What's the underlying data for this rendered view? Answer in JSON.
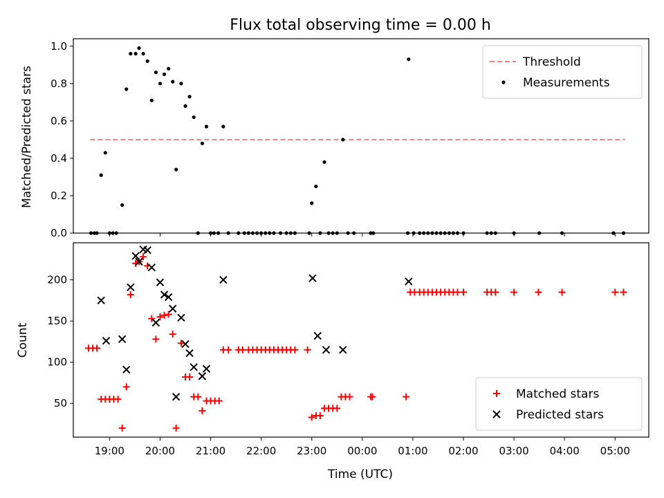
{
  "chart_data": [
    {
      "type": "scatter",
      "title": "Flux total observing time = 0.00 h",
      "xlabel": "",
      "ylabel": "Matched/Predicted stars",
      "xlim": [
        "18:17",
        "05:40"
      ],
      "ylim": [
        0,
        1.04
      ],
      "yticks": [
        "0.0",
        "0.2",
        "0.4",
        "0.6",
        "0.8",
        "1.0"
      ],
      "x_tick_times": [
        "19:00",
        "20:00",
        "21:00",
        "22:00",
        "23:00",
        "00:00",
        "01:00",
        "02:00",
        "03:00",
        "04:00",
        "05:00"
      ],
      "grid": false,
      "legend_position": "top-right",
      "threshold": {
        "name": "Threshold",
        "color": "#f08080",
        "style": "dashed",
        "value": 0.5,
        "x_start": "18:37",
        "x_end": "05:12"
      },
      "series": [
        {
          "name": "Measurements",
          "color": "#000000",
          "marker": "dot",
          "points": [
            [
              "18:38",
              0
            ],
            [
              "18:42",
              0
            ],
            [
              "18:45",
              0
            ],
            [
              "18:50",
              0.31
            ],
            [
              "18:55",
              0.43
            ],
            [
              "19:00",
              0
            ],
            [
              "19:04",
              0
            ],
            [
              "19:08",
              0
            ],
            [
              "19:15",
              0.15
            ],
            [
              "19:20",
              0.77
            ],
            [
              "19:25",
              0.96
            ],
            [
              "19:31",
              0.96
            ],
            [
              "19:35",
              0.99
            ],
            [
              "19:40",
              0.96
            ],
            [
              "19:45",
              0.92
            ],
            [
              "19:50",
              0.71
            ],
            [
              "19:55",
              0.86
            ],
            [
              "20:00",
              0.8
            ],
            [
              "20:05",
              0.85
            ],
            [
              "20:10",
              0.88
            ],
            [
              "20:15",
              0.81
            ],
            [
              "20:19",
              0.34
            ],
            [
              "20:25",
              0.8
            ],
            [
              "20:30",
              0.68
            ],
            [
              "20:35",
              0.73
            ],
            [
              "20:40",
              0.62
            ],
            [
              "20:45",
              0
            ],
            [
              "20:50",
              0.48
            ],
            [
              "20:55",
              0.57
            ],
            [
              "21:00",
              0
            ],
            [
              "21:04",
              0
            ],
            [
              "21:09",
              0
            ],
            [
              "21:15",
              0.57
            ],
            [
              "21:21",
              0
            ],
            [
              "21:33",
              0
            ],
            [
              "21:40",
              0
            ],
            [
              "21:45",
              0
            ],
            [
              "21:50",
              0
            ],
            [
              "21:55",
              0
            ],
            [
              "22:00",
              0
            ],
            [
              "22:05",
              0
            ],
            [
              "22:10",
              0
            ],
            [
              "22:15",
              0
            ],
            [
              "22:23",
              0
            ],
            [
              "22:30",
              0
            ],
            [
              "22:35",
              0
            ],
            [
              "22:40",
              0
            ],
            [
              "22:57",
              0
            ],
            [
              "23:00",
              0.16
            ],
            [
              "23:05",
              0.25
            ],
            [
              "23:10",
              0
            ],
            [
              "23:15",
              0.38
            ],
            [
              "23:20",
              0
            ],
            [
              "23:25",
              0
            ],
            [
              "23:30",
              0
            ],
            [
              "23:37",
              0.5
            ],
            [
              "23:43",
              0
            ],
            [
              "23:50",
              0
            ],
            [
              "00:10",
              0
            ],
            [
              "00:13",
              0
            ],
            [
              "00:54",
              0
            ],
            [
              "00:55",
              0.93
            ],
            [
              "01:01",
              0
            ],
            [
              "01:08",
              0
            ],
            [
              "01:13",
              0
            ],
            [
              "01:18",
              0
            ],
            [
              "01:23",
              0
            ],
            [
              "01:28",
              0
            ],
            [
              "01:33",
              0
            ],
            [
              "01:38",
              0
            ],
            [
              "01:43",
              0
            ],
            [
              "01:48",
              0
            ],
            [
              "01:53",
              0
            ],
            [
              "02:00",
              0
            ],
            [
              "02:28",
              0
            ],
            [
              "02:33",
              0
            ],
            [
              "02:38",
              0
            ],
            [
              "03:00",
              0
            ],
            [
              "03:30",
              0
            ],
            [
              "03:57",
              0
            ],
            [
              "04:58",
              0
            ],
            [
              "05:10",
              0
            ]
          ]
        }
      ]
    },
    {
      "type": "scatter",
      "title": "",
      "xlabel": "Time (UTC)",
      "ylabel": "Count",
      "xlim": [
        "18:17",
        "05:40"
      ],
      "ylim": [
        9,
        245
      ],
      "yticks": [
        "50",
        "100",
        "150",
        "200"
      ],
      "xticks": [
        "19:00",
        "20:00",
        "21:00",
        "22:00",
        "23:00",
        "00:00",
        "01:00",
        "02:00",
        "03:00",
        "04:00",
        "05:00"
      ],
      "grid": false,
      "legend_position": "bottom-right",
      "series": [
        {
          "name": "Matched stars",
          "color": "#ff0000",
          "marker": "plus",
          "points": [
            [
              "18:35",
              117
            ],
            [
              "18:40",
              117
            ],
            [
              "18:45",
              117
            ],
            [
              "18:50",
              55
            ],
            [
              "18:55",
              55
            ],
            [
              "19:00",
              55
            ],
            [
              "19:05",
              55
            ],
            [
              "19:10",
              55
            ],
            [
              "19:15",
              20
            ],
            [
              "19:20",
              70
            ],
            [
              "19:25",
              182
            ],
            [
              "19:31",
              220
            ],
            [
              "19:35",
              222
            ],
            [
              "19:40",
              228
            ],
            [
              "19:45",
              217
            ],
            [
              "19:50",
              153
            ],
            [
              "19:55",
              128
            ],
            [
              "20:00",
              155
            ],
            [
              "20:05",
              157
            ],
            [
              "20:10",
              158
            ],
            [
              "20:15",
              134
            ],
            [
              "20:19",
              20
            ],
            [
              "20:25",
              123
            ],
            [
              "20:30",
              82
            ],
            [
              "20:35",
              82
            ],
            [
              "20:40",
              58
            ],
            [
              "20:45",
              58
            ],
            [
              "20:50",
              41
            ],
            [
              "20:55",
              53
            ],
            [
              "21:00",
              53
            ],
            [
              "21:05",
              53
            ],
            [
              "21:10",
              53
            ],
            [
              "21:15",
              115
            ],
            [
              "21:21",
              115
            ],
            [
              "21:33",
              115
            ],
            [
              "21:38",
              115
            ],
            [
              "21:45",
              115
            ],
            [
              "21:50",
              115
            ],
            [
              "21:55",
              115
            ],
            [
              "22:00",
              115
            ],
            [
              "22:05",
              115
            ],
            [
              "22:10",
              115
            ],
            [
              "22:15",
              115
            ],
            [
              "22:20",
              115
            ],
            [
              "22:25",
              115
            ],
            [
              "22:30",
              115
            ],
            [
              "22:35",
              115
            ],
            [
              "22:40",
              115
            ],
            [
              "22:55",
              115
            ],
            [
              "23:00",
              33
            ],
            [
              "23:05",
              35
            ],
            [
              "23:10",
              35
            ],
            [
              "23:15",
              44
            ],
            [
              "23:20",
              44
            ],
            [
              "23:25",
              44
            ],
            [
              "23:30",
              44
            ],
            [
              "23:35",
              58
            ],
            [
              "23:40",
              58
            ],
            [
              "23:45",
              58
            ],
            [
              "00:10",
              58
            ],
            [
              "00:12",
              58
            ],
            [
              "00:52",
              58
            ],
            [
              "00:57",
              185
            ],
            [
              "01:02",
              185
            ],
            [
              "01:08",
              185
            ],
            [
              "01:13",
              185
            ],
            [
              "01:18",
              185
            ],
            [
              "01:23",
              185
            ],
            [
              "01:28",
              185
            ],
            [
              "01:33",
              185
            ],
            [
              "01:38",
              185
            ],
            [
              "01:43",
              185
            ],
            [
              "01:48",
              185
            ],
            [
              "01:53",
              185
            ],
            [
              "02:00",
              185
            ],
            [
              "02:28",
              185
            ],
            [
              "02:33",
              185
            ],
            [
              "02:38",
              185
            ],
            [
              "03:00",
              185
            ],
            [
              "03:29",
              185
            ],
            [
              "03:57",
              185
            ],
            [
              "05:00",
              185
            ],
            [
              "05:10",
              185
            ]
          ]
        },
        {
          "name": "Predicted stars",
          "color": "#000000",
          "marker": "x",
          "points": [
            [
              "18:50",
              175
            ],
            [
              "18:56",
              126
            ],
            [
              "19:15",
              128
            ],
            [
              "19:20",
              91
            ],
            [
              "19:25",
              191
            ],
            [
              "19:31",
              229
            ],
            [
              "19:35",
              222
            ],
            [
              "19:40",
              237
            ],
            [
              "19:45",
              236
            ],
            [
              "19:50",
              215
            ],
            [
              "19:55",
              148
            ],
            [
              "20:00",
              197
            ],
            [
              "20:05",
              182
            ],
            [
              "20:10",
              179
            ],
            [
              "20:15",
              165
            ],
            [
              "20:19",
              58
            ],
            [
              "20:25",
              154
            ],
            [
              "20:30",
              122
            ],
            [
              "20:35",
              111
            ],
            [
              "20:40",
              94
            ],
            [
              "20:50",
              83
            ],
            [
              "20:55",
              92
            ],
            [
              "21:15",
              200
            ],
            [
              "23:01",
              202
            ],
            [
              "23:07",
              132
            ],
            [
              "23:17",
              115
            ],
            [
              "23:37",
              115
            ],
            [
              "00:55",
              198
            ]
          ]
        }
      ]
    }
  ]
}
